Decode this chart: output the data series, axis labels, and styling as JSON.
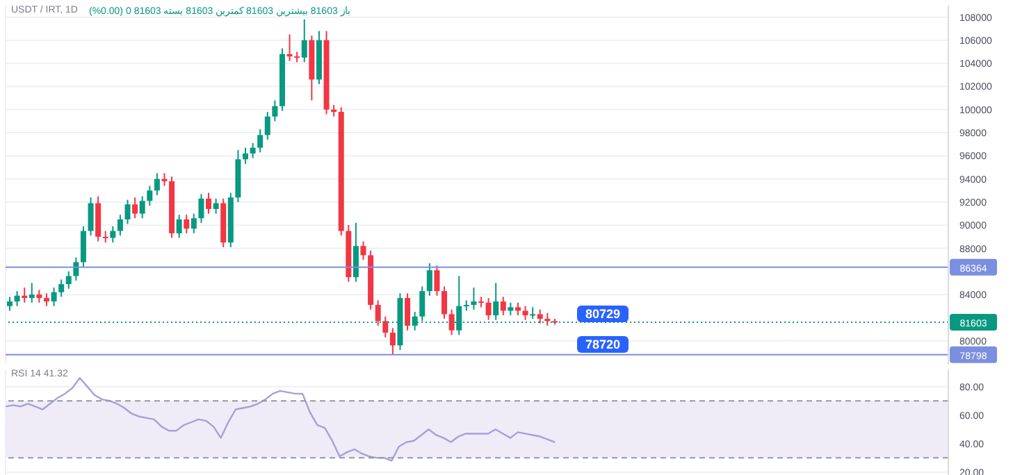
{
  "chart_data": [
    {
      "type": "candlestick",
      "title": "USDT / IRT, 1D",
      "subtitle": "باز 81603 بیشترین 81603 کمترین 81603 بسته 81603 0 (0.00%)",
      "categories": [
        null,
        null,
        null,
        null,
        null,
        null,
        null,
        null,
        null,
        null,
        null,
        null,
        null,
        null,
        null,
        null,
        null,
        null,
        null,
        null,
        null,
        null,
        null,
        null,
        null,
        null,
        null,
        null,
        null,
        null,
        null,
        null,
        null,
        null,
        null,
        null,
        null,
        null,
        null,
        null,
        null,
        null,
        null,
        null,
        null,
        null,
        null,
        null,
        null,
        null,
        null,
        null,
        null,
        null,
        null,
        null,
        null,
        null,
        null,
        null,
        null,
        null,
        null,
        null,
        null,
        null,
        null,
        null,
        null,
        null,
        null,
        null,
        null,
        null,
        null,
        null,
        null,
        null,
        null,
        null,
        null,
        null,
        null,
        null,
        null,
        null,
        null,
        null,
        null,
        null,
        null,
        null,
        null,
        null,
        null,
        null,
        null,
        null,
        null,
        null,
        null,
        null,
        null,
        null,
        null,
        null,
        null,
        null,
        null,
        null,
        null,
        null,
        null,
        null,
        null,
        null,
        null,
        null,
        null,
        null,
        null,
        null,
        null,
        null,
        null,
        null,
        null,
        null
      ],
      "ohlc": [
        [
          83000,
          83800,
          82600,
          83400
        ],
        [
          83400,
          84300,
          83000,
          83900
        ],
        [
          83900,
          84600,
          83300,
          83700
        ],
        [
          83700,
          85000,
          83300,
          84000
        ],
        [
          84000,
          84400,
          83300,
          83700
        ],
        [
          83700,
          84100,
          83000,
          83400
        ],
        [
          83400,
          84600,
          83000,
          84200
        ],
        [
          84200,
          85300,
          83800,
          84900
        ],
        [
          84900,
          86000,
          84500,
          85600
        ],
        [
          85600,
          87200,
          85200,
          86800
        ],
        [
          86800,
          89900,
          86400,
          89500
        ],
        [
          89500,
          92400,
          89100,
          91900
        ],
        [
          91900,
          92500,
          88600,
          89000
        ],
        [
          89000,
          89500,
          88500,
          88900
        ],
        [
          88900,
          89900,
          88500,
          89500
        ],
        [
          89500,
          90900,
          89100,
          90500
        ],
        [
          90500,
          92200,
          90100,
          91800
        ],
        [
          91800,
          92400,
          90600,
          91000
        ],
        [
          91000,
          92500,
          90600,
          92100
        ],
        [
          92100,
          93400,
          91700,
          93000
        ],
        [
          93000,
          94500,
          92600,
          94000
        ],
        [
          94000,
          94500,
          93400,
          93800
        ],
        [
          93800,
          94200,
          88900,
          89300
        ],
        [
          89300,
          90900,
          88900,
          90500
        ],
        [
          90500,
          90900,
          89300,
          89700
        ],
        [
          89700,
          91000,
          89300,
          90600
        ],
        [
          90600,
          92700,
          90200,
          92300
        ],
        [
          92300,
          92800,
          91000,
          91400
        ],
        [
          91400,
          92300,
          91000,
          91900
        ],
        [
          91900,
          92300,
          88100,
          88500
        ],
        [
          88500,
          92800,
          88100,
          92400
        ],
        [
          92400,
          96500,
          92000,
          95700
        ],
        [
          95700,
          96700,
          95300,
          96200
        ],
        [
          96200,
          97100,
          95800,
          96700
        ],
        [
          96700,
          98300,
          96300,
          97800
        ],
        [
          97800,
          99800,
          97400,
          99400
        ],
        [
          99400,
          100800,
          99000,
          100300
        ],
        [
          100300,
          105300,
          99900,
          104800
        ],
        [
          104800,
          106500,
          104200,
          104600
        ],
        [
          104600,
          105000,
          104100,
          104500
        ],
        [
          104500,
          107800,
          104100,
          106000
        ],
        [
          106000,
          106400,
          100800,
          102600
        ],
        [
          102600,
          106800,
          102200,
          106000
        ],
        [
          106000,
          106800,
          99600,
          100000
        ],
        [
          100000,
          100400,
          99400,
          99800
        ],
        [
          99800,
          100200,
          89100,
          89500
        ],
        [
          89500,
          90000,
          85100,
          85500
        ],
        [
          85500,
          90200,
          85100,
          88200
        ],
        [
          88200,
          88600,
          87000,
          87400
        ],
        [
          87400,
          87800,
          82700,
          83100
        ],
        [
          83100,
          83500,
          81300,
          81700
        ],
        [
          81700,
          82100,
          80300,
          80700
        ],
        [
          80700,
          81100,
          78798,
          79600
        ],
        [
          79600,
          84100,
          79200,
          83700
        ],
        [
          83700,
          84100,
          80900,
          81300
        ],
        [
          81300,
          82500,
          80900,
          82100
        ],
        [
          82100,
          84700,
          81700,
          84300
        ],
        [
          84300,
          86700,
          83900,
          86100
        ],
        [
          86100,
          86500,
          83900,
          84300
        ],
        [
          84300,
          84700,
          81900,
          82300
        ],
        [
          82300,
          82700,
          80500,
          80900
        ],
        [
          80900,
          85600,
          80500,
          83000
        ],
        [
          83000,
          83500,
          82600,
          83100
        ],
        [
          83100,
          84600,
          82700,
          83400
        ],
        [
          83400,
          83800,
          82900,
          83300
        ],
        [
          83300,
          83700,
          81800,
          82200
        ],
        [
          82200,
          85000,
          81800,
          83400
        ],
        [
          83400,
          83800,
          82200,
          82600
        ],
        [
          82600,
          83300,
          82200,
          82900
        ],
        [
          82900,
          83300,
          82200,
          82600
        ],
        [
          82600,
          83000,
          81800,
          82200
        ],
        [
          82200,
          82900,
          81900,
          82300
        ],
        [
          82300,
          82700,
          81500,
          81900
        ],
        [
          81900,
          82400,
          81300,
          81700
        ],
        [
          81700,
          81900,
          81400,
          81603
        ],
        null,
        null,
        null,
        null,
        null,
        null,
        null,
        null,
        null,
        null,
        null,
        null,
        null,
        null,
        null,
        null,
        null,
        null,
        null,
        null,
        null,
        null,
        null,
        null,
        null,
        null,
        null,
        null,
        null,
        null,
        null,
        null,
        null,
        null,
        null,
        null,
        null,
        null,
        null,
        null,
        null,
        null,
        null,
        null,
        null,
        null,
        null,
        null,
        null,
        null,
        null,
        null,
        null
      ],
      "ylim": [
        78000,
        109000
      ],
      "yticks": [
        80000,
        84000,
        88000,
        90000,
        92000,
        94000,
        96000,
        98000,
        100000,
        102000,
        104000,
        106000,
        108000
      ],
      "grid": true,
      "tick_labels": "y",
      "ref_lines": [
        {
          "axis": "y",
          "value": 86364,
          "label": "86364",
          "color": "#7b8fe0"
        },
        {
          "axis": "y",
          "value": 78798,
          "label": "78798",
          "color": "#7b8fe0"
        },
        {
          "axis": "y",
          "value": 81603,
          "label": "81603",
          "color": "#089981",
          "line_style": "dotted"
        }
      ],
      "annotations": [
        "80729",
        "78720"
      ]
    },
    {
      "type": "line",
      "title": "RSI 14 41.32",
      "categories": [
        null,
        null,
        null,
        null,
        null,
        null,
        null,
        null,
        null,
        null,
        null,
        null,
        null,
        null,
        null,
        null,
        null,
        null,
        null,
        null,
        null,
        null,
        null,
        null,
        null,
        null,
        null,
        null,
        null,
        null,
        null,
        null,
        null,
        null,
        null,
        null,
        null,
        null,
        null,
        null,
        null,
        null,
        null,
        null,
        null,
        null,
        null,
        null,
        null,
        null,
        null,
        null,
        null,
        null,
        null,
        null,
        null,
        null,
        null,
        null,
        null,
        null,
        null,
        null,
        null,
        null,
        null,
        null,
        null,
        null,
        null,
        null,
        null,
        null,
        null,
        null,
        null,
        null,
        null,
        null,
        null,
        null,
        null,
        null,
        null,
        null,
        null,
        null,
        null,
        null,
        null,
        null,
        null,
        null,
        null,
        null,
        null,
        null,
        null,
        null,
        null,
        null,
        null,
        null,
        null,
        null,
        null,
        null,
        null,
        null,
        null,
        null,
        null,
        null,
        null,
        null,
        null,
        null,
        null,
        null,
        null,
        null,
        null,
        null,
        null,
        null,
        null,
        null
      ],
      "series": [
        {
          "color": "#a79fd8",
          "values": [
            66,
            67,
            66,
            68,
            66,
            64,
            68,
            72,
            75,
            79,
            86,
            80,
            74,
            71,
            70,
            68,
            65,
            61,
            59,
            58,
            57,
            52,
            49,
            49,
            53,
            55,
            57,
            56,
            52,
            44,
            55,
            64,
            65,
            66,
            68,
            71,
            75,
            77,
            76,
            75,
            75,
            62,
            53,
            51,
            42,
            31,
            34,
            36,
            33,
            31,
            30,
            30,
            28,
            38,
            41,
            42,
            46,
            50,
            46,
            44,
            41,
            45,
            47,
            47,
            47,
            47,
            50,
            47,
            44,
            48,
            47,
            46,
            45,
            43,
            41,
            null,
            null,
            null,
            null,
            null,
            null,
            null,
            null,
            null,
            null,
            null,
            null,
            null,
            null,
            null,
            null,
            null,
            null,
            null,
            null,
            null,
            null,
            null,
            null,
            null,
            null,
            null,
            null,
            null,
            null,
            null,
            null,
            null,
            null,
            null,
            null,
            null,
            null,
            null,
            null,
            null,
            null,
            null,
            null,
            null,
            null,
            null,
            null,
            null,
            null,
            null,
            null,
            null
          ]
        }
      ],
      "ylim": [
        18,
        92
      ],
      "yticks": [
        {
          "value": 20,
          "label": "20.00"
        },
        {
          "value": 40,
          "label": "40.00"
        },
        {
          "value": 60,
          "label": "60.00"
        },
        {
          "value": 80,
          "label": "80.00"
        }
      ],
      "grid": true,
      "tick_labels": "y",
      "marker": "none",
      "line_style": "solid",
      "ref_lines": [
        {
          "axis": "y",
          "value": 70,
          "line_style": "dashed",
          "color": "#9598a1"
        },
        {
          "axis": "y",
          "value": 30,
          "line_style": "dashed",
          "color": "#9598a1"
        }
      ],
      "bands": [
        {
          "axis": "y",
          "from": 30,
          "to": 70,
          "color": "#efecf8"
        }
      ]
    }
  ]
}
